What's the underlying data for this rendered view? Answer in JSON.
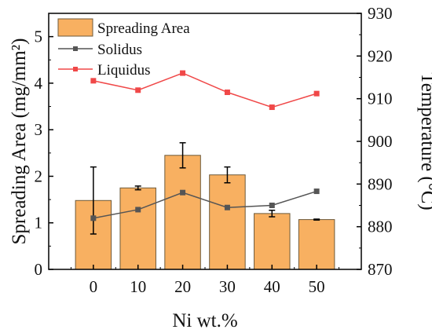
{
  "chart_data": {
    "type": "bar",
    "categories": [
      "0",
      "10",
      "20",
      "30",
      "40",
      "50"
    ],
    "xlabel": "Ni wt.%",
    "ylabel": "Spreading Area (mg/mm²)",
    "y2label": "Temperature (°C)",
    "ylim": [
      0,
      5.5
    ],
    "y2lim": [
      870,
      930
    ],
    "yticks": [
      "0",
      "1",
      "2",
      "3",
      "4",
      "5"
    ],
    "y2ticks": [
      "870",
      "880",
      "890",
      "900",
      "910",
      "920",
      "930"
    ],
    "grid": false,
    "legend_position": "top-left",
    "series": [
      {
        "name": "Spreading Area",
        "type": "bar",
        "axis": "left",
        "values": [
          1.48,
          1.75,
          2.45,
          2.03,
          1.2,
          1.07
        ],
        "errors": [
          0.72,
          0.04,
          0.27,
          0.17,
          0.07,
          0.01
        ],
        "color": "#F8B061"
      },
      {
        "name": "Solidus",
        "type": "line",
        "axis": "right",
        "values": [
          882,
          884,
          888,
          884.5,
          885,
          888.3
        ],
        "color": "#555555"
      },
      {
        "name": "Liquidus",
        "type": "line",
        "axis": "right",
        "values": [
          914.2,
          912,
          916,
          911.5,
          908,
          911.2
        ],
        "color": "#F04848"
      }
    ]
  }
}
